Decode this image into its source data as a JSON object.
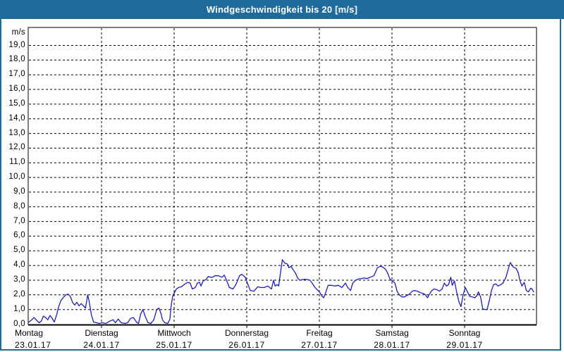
{
  "window": {
    "title": "Windgeschwindigkeit bis 20 [m/s]",
    "titlebar_color": "#1E6B9C",
    "titlebar_text_color": "#FFFFFF",
    "border_color": "#1E6B9C",
    "background": "#FFFFFF"
  },
  "chart_data": {
    "type": "line",
    "title": "Windgeschwindigkeit bis 20 [m/s]",
    "ylabel": "m/s",
    "xlabel": "",
    "ylim": [
      0,
      20.2
    ],
    "y_tick_step": 1.0,
    "grid": "dashed-black",
    "legend_position": "none",
    "line_color": "#1C1CC8",
    "axis_color": "#000000",
    "y_tick_labels": [
      "0,0",
      "1,0",
      "2,0",
      "3,0",
      "4,0",
      "5,0",
      "6,0",
      "7,0",
      "8,0",
      "9,0",
      "10,0",
      "11,0",
      "12,0",
      "13,0",
      "14,0",
      "15,0",
      "16,0",
      "17,0",
      "18,0",
      "19,0"
    ],
    "x_days": [
      {
        "name": "Montag",
        "date": "23.01.17"
      },
      {
        "name": "Dienstag",
        "date": "24.01.17"
      },
      {
        "name": "Mittwoch",
        "date": "25.01.17"
      },
      {
        "name": "Donnerstag",
        "date": "26.01.17"
      },
      {
        "name": "Freitag",
        "date": "27.01.17"
      },
      {
        "name": "Samstag",
        "date": "28.01.17"
      },
      {
        "name": "Sonntag",
        "date": "29.01.17"
      }
    ],
    "x_unit": "days_offset_from_Montag_00h",
    "series": [
      {
        "name": "Windgeschwindigkeit",
        "unit": "m/s",
        "points": [
          [
            0.0,
            0.15
          ],
          [
            0.04,
            0.3
          ],
          [
            0.07,
            0.45
          ],
          [
            0.11,
            0.25
          ],
          [
            0.14,
            0.1
          ],
          [
            0.17,
            0.2
          ],
          [
            0.2,
            0.55
          ],
          [
            0.23,
            0.45
          ],
          [
            0.26,
            0.3
          ],
          [
            0.29,
            0.6
          ],
          [
            0.32,
            0.4
          ],
          [
            0.35,
            0.15
          ],
          [
            0.38,
            0.6
          ],
          [
            0.41,
            1.2
          ],
          [
            0.44,
            1.6
          ],
          [
            0.48,
            1.85
          ],
          [
            0.51,
            2.0
          ],
          [
            0.54,
            2.05
          ],
          [
            0.57,
            1.9
          ],
          [
            0.6,
            1.5
          ],
          [
            0.63,
            1.3
          ],
          [
            0.66,
            1.5
          ],
          [
            0.69,
            1.25
          ],
          [
            0.72,
            1.4
          ],
          [
            0.75,
            1.25
          ],
          [
            0.78,
            1.1
          ],
          [
            0.81,
            2.0
          ],
          [
            0.83,
            1.55
          ],
          [
            0.86,
            0.65
          ],
          [
            0.89,
            0.15
          ],
          [
            0.93,
            0.1
          ],
          [
            0.97,
            0.05
          ],
          [
            1.01,
            0.1
          ],
          [
            1.06,
            0.05
          ],
          [
            1.11,
            0.2
          ],
          [
            1.16,
            0.3
          ],
          [
            1.19,
            0.1
          ],
          [
            1.23,
            0.35
          ],
          [
            1.27,
            0.1
          ],
          [
            1.32,
            0.05
          ],
          [
            1.36,
            0.1
          ],
          [
            1.4,
            0.4
          ],
          [
            1.44,
            0.45
          ],
          [
            1.48,
            0.15
          ],
          [
            1.51,
            0.05
          ],
          [
            1.54,
            0.7
          ],
          [
            1.57,
            1.0
          ],
          [
            1.6,
            0.55
          ],
          [
            1.64,
            0.1
          ],
          [
            1.68,
            0.05
          ],
          [
            1.72,
            0.3
          ],
          [
            1.76,
            1.0
          ],
          [
            1.79,
            1.1
          ],
          [
            1.82,
            0.7
          ],
          [
            1.84,
            0.3
          ],
          [
            1.87,
            0.1
          ],
          [
            1.91,
            0.05
          ],
          [
            1.94,
            0.3
          ],
          [
            1.96,
            1.3
          ],
          [
            1.98,
            1.9
          ],
          [
            2.0,
            2.1
          ],
          [
            2.03,
            2.4
          ],
          [
            2.06,
            2.5
          ],
          [
            2.1,
            2.55
          ],
          [
            2.15,
            2.75
          ],
          [
            2.19,
            2.85
          ],
          [
            2.22,
            2.8
          ],
          [
            2.25,
            2.4
          ],
          [
            2.29,
            2.5
          ],
          [
            2.32,
            2.8
          ],
          [
            2.35,
            2.85
          ],
          [
            2.37,
            2.6
          ],
          [
            2.4,
            2.95
          ],
          [
            2.44,
            3.05
          ],
          [
            2.47,
            3.25
          ],
          [
            2.5,
            3.2
          ],
          [
            2.53,
            3.2
          ],
          [
            2.56,
            3.3
          ],
          [
            2.61,
            3.3
          ],
          [
            2.66,
            3.2
          ],
          [
            2.69,
            3.35
          ],
          [
            2.73,
            2.9
          ],
          [
            2.76,
            2.5
          ],
          [
            2.81,
            2.4
          ],
          [
            2.85,
            2.7
          ],
          [
            2.9,
            3.3
          ],
          [
            2.93,
            3.4
          ],
          [
            2.98,
            3.2
          ],
          [
            3.02,
            2.65
          ],
          [
            3.05,
            2.3
          ],
          [
            3.1,
            2.25
          ],
          [
            3.15,
            2.55
          ],
          [
            3.19,
            2.5
          ],
          [
            3.24,
            2.5
          ],
          [
            3.29,
            2.6
          ],
          [
            3.34,
            2.4
          ],
          [
            3.37,
            3.0
          ],
          [
            3.39,
            2.6
          ],
          [
            3.42,
            2.7
          ],
          [
            3.44,
            2.6
          ],
          [
            3.47,
            3.7
          ],
          [
            3.49,
            4.4
          ],
          [
            3.51,
            4.25
          ],
          [
            3.53,
            4.15
          ],
          [
            3.56,
            4.1
          ],
          [
            3.58,
            3.85
          ],
          [
            3.61,
            3.95
          ],
          [
            3.64,
            3.7
          ],
          [
            3.67,
            3.5
          ],
          [
            3.7,
            3.15
          ],
          [
            3.73,
            3.0
          ],
          [
            3.78,
            3.05
          ],
          [
            3.83,
            3.05
          ],
          [
            3.87,
            3.0
          ],
          [
            3.9,
            2.8
          ],
          [
            3.94,
            2.5
          ],
          [
            3.97,
            2.35
          ],
          [
            4.0,
            2.2
          ],
          [
            4.03,
            1.95
          ],
          [
            4.06,
            1.8
          ],
          [
            4.09,
            2.2
          ],
          [
            4.12,
            2.65
          ],
          [
            4.17,
            2.65
          ],
          [
            4.21,
            2.6
          ],
          [
            4.26,
            2.65
          ],
          [
            4.31,
            2.5
          ],
          [
            4.36,
            2.8
          ],
          [
            4.39,
            2.5
          ],
          [
            4.43,
            2.3
          ],
          [
            4.46,
            2.8
          ],
          [
            4.5,
            3.0
          ],
          [
            4.55,
            3.1
          ],
          [
            4.58,
            3.1
          ],
          [
            4.62,
            3.15
          ],
          [
            4.65,
            3.1
          ],
          [
            4.7,
            3.2
          ],
          [
            4.75,
            3.3
          ],
          [
            4.8,
            3.85
          ],
          [
            4.84,
            3.95
          ],
          [
            4.87,
            3.9
          ],
          [
            4.91,
            3.75
          ],
          [
            4.94,
            3.5
          ],
          [
            4.97,
            3.1
          ],
          [
            5.0,
            2.95
          ],
          [
            5.02,
            2.9
          ],
          [
            5.04,
            2.8
          ],
          [
            5.07,
            2.25
          ],
          [
            5.1,
            2.0
          ],
          [
            5.14,
            1.85
          ],
          [
            5.17,
            1.85
          ],
          [
            5.2,
            1.95
          ],
          [
            5.23,
            2.0
          ],
          [
            5.28,
            2.25
          ],
          [
            5.31,
            2.3
          ],
          [
            5.35,
            2.25
          ],
          [
            5.39,
            2.15
          ],
          [
            5.43,
            2.1
          ],
          [
            5.46,
            2.0
          ],
          [
            5.49,
            1.8
          ],
          [
            5.51,
            2.0
          ],
          [
            5.55,
            2.3
          ],
          [
            5.58,
            2.4
          ],
          [
            5.62,
            2.35
          ],
          [
            5.65,
            2.25
          ],
          [
            5.69,
            2.4
          ],
          [
            5.72,
            2.8
          ],
          [
            5.75,
            2.6
          ],
          [
            5.78,
            2.7
          ],
          [
            5.81,
            3.2
          ],
          [
            5.83,
            2.65
          ],
          [
            5.86,
            2.95
          ],
          [
            5.89,
            2.2
          ],
          [
            5.92,
            1.55
          ],
          [
            5.95,
            1.2
          ],
          [
            5.98,
            2.0
          ],
          [
            6.01,
            2.5
          ],
          [
            6.04,
            2.2
          ],
          [
            6.07,
            1.9
          ],
          [
            6.11,
            1.85
          ],
          [
            6.14,
            1.8
          ],
          [
            6.17,
            1.95
          ],
          [
            6.19,
            2.2
          ],
          [
            6.22,
            1.85
          ],
          [
            6.25,
            1.05
          ],
          [
            6.28,
            1.0
          ],
          [
            6.31,
            1.0
          ],
          [
            6.34,
            1.6
          ],
          [
            6.37,
            2.3
          ],
          [
            6.4,
            2.7
          ],
          [
            6.43,
            2.75
          ],
          [
            6.46,
            2.6
          ],
          [
            6.5,
            2.7
          ],
          [
            6.53,
            2.8
          ],
          [
            6.57,
            3.2
          ],
          [
            6.61,
            3.9
          ],
          [
            6.63,
            4.2
          ],
          [
            6.67,
            3.9
          ],
          [
            6.71,
            3.8
          ],
          [
            6.74,
            3.5
          ],
          [
            6.76,
            3.0
          ],
          [
            6.79,
            2.6
          ],
          [
            6.82,
            2.85
          ],
          [
            6.83,
            2.7
          ],
          [
            6.85,
            2.3
          ],
          [
            6.88,
            2.2
          ],
          [
            6.91,
            2.45
          ],
          [
            6.93,
            2.4
          ],
          [
            6.95,
            2.2
          ]
        ]
      }
    ]
  }
}
